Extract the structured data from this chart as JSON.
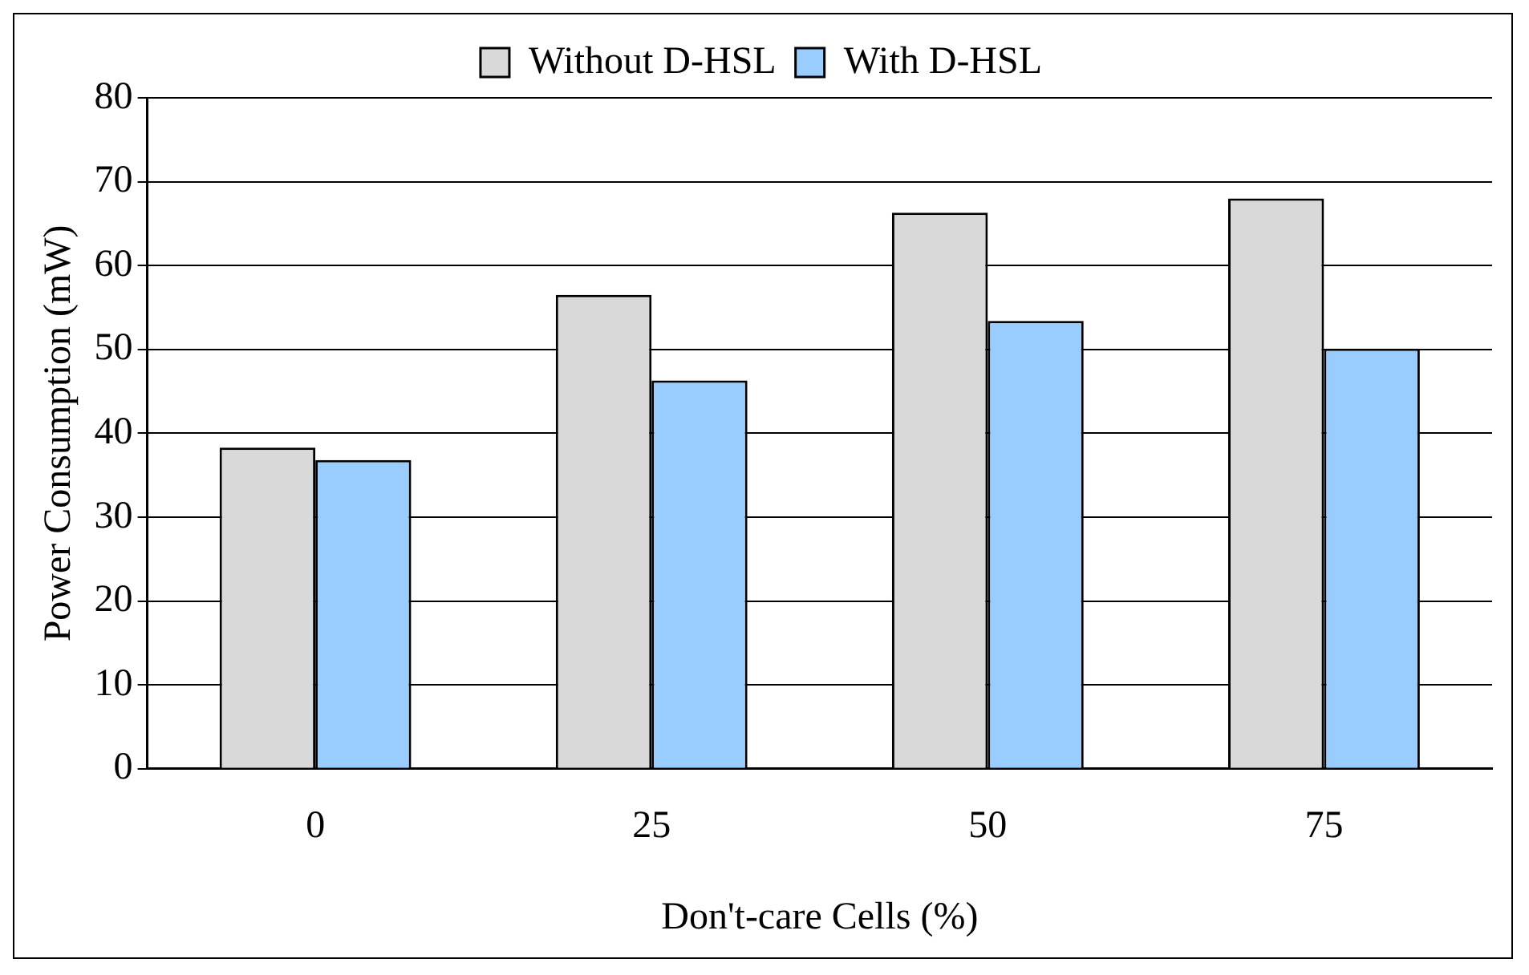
{
  "chart_data": {
    "type": "bar",
    "xlabel": "Don't-care Cells (%)",
    "ylabel": "Power Consumption (mW)",
    "categories": [
      "0",
      "25",
      "50",
      "75"
    ],
    "series": [
      {
        "name": "Without D-HSL",
        "color": "#d9d9d9",
        "values": [
          38.3,
          56.5,
          66.3,
          68.0
        ]
      },
      {
        "name": "With D-HSL",
        "color": "#99ccff",
        "values": [
          36.8,
          46.3,
          53.4,
          50.1
        ]
      }
    ],
    "ylim": [
      0,
      80
    ],
    "yticks": [
      0,
      10,
      20,
      30,
      40,
      50,
      60,
      70,
      80
    ],
    "grid": "y",
    "legend": "top"
  }
}
